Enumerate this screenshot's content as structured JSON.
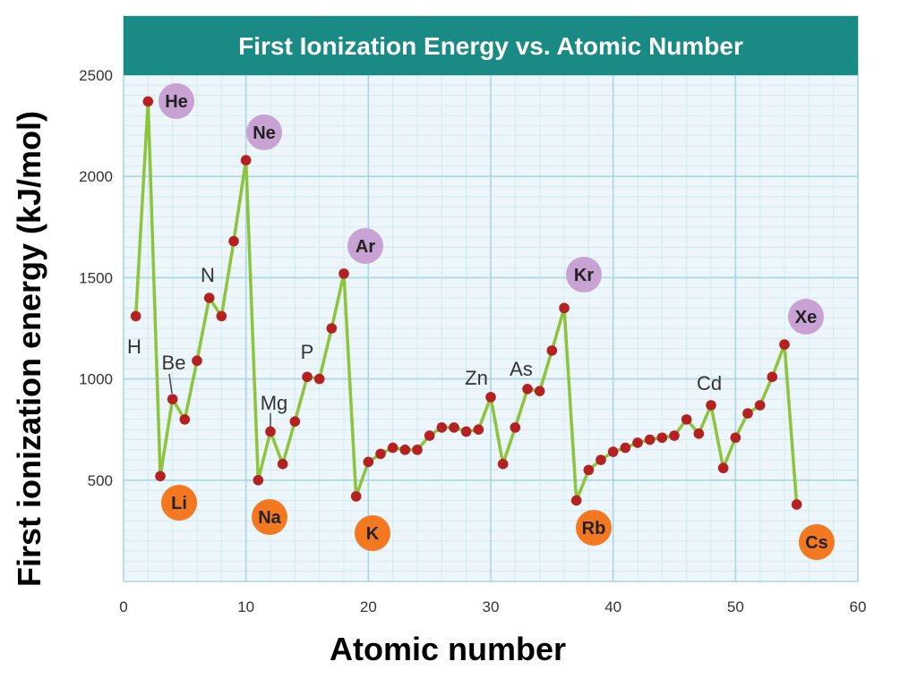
{
  "chart_data": {
    "type": "line",
    "title": "First Ionization Energy vs. Atomic Number",
    "xlabel": "Atomic number",
    "ylabel": "First ionization energy (kJ/mol)",
    "xlim": [
      0,
      60
    ],
    "ylim": [
      0,
      2500
    ],
    "xticks": [
      "0",
      "10",
      "20",
      "30",
      "40",
      "50",
      "60"
    ],
    "yticks": [
      "500",
      "1000",
      "1500",
      "2000",
      "2500"
    ],
    "grid": true,
    "x": [
      1,
      2,
      3,
      4,
      5,
      6,
      7,
      8,
      9,
      10,
      11,
      12,
      13,
      14,
      15,
      16,
      17,
      18,
      19,
      20,
      21,
      22,
      23,
      24,
      25,
      26,
      27,
      28,
      29,
      30,
      31,
      32,
      33,
      34,
      35,
      36,
      37,
      38,
      39,
      40,
      41,
      42,
      43,
      44,
      45,
      46,
      47,
      48,
      49,
      50,
      51,
      52,
      53,
      54,
      55
    ],
    "y": [
      1310,
      2370,
      520,
      900,
      800,
      1090,
      1400,
      1310,
      1680,
      2080,
      500,
      740,
      580,
      790,
      1010,
      1000,
      1250,
      1520,
      420,
      590,
      630,
      660,
      650,
      650,
      720,
      760,
      760,
      740,
      750,
      910,
      580,
      760,
      950,
      940,
      1140,
      1350,
      400,
      550,
      600,
      640,
      660,
      685,
      700,
      710,
      720,
      800,
      730,
      870,
      560,
      710,
      830,
      870,
      1010,
      1170,
      380
    ],
    "element_labels": [
      {
        "symbol": "He",
        "style": "noble"
      },
      {
        "symbol": "Ne",
        "style": "noble"
      },
      {
        "symbol": "Ar",
        "style": "noble"
      },
      {
        "symbol": "Kr",
        "style": "noble"
      },
      {
        "symbol": "Xe",
        "style": "noble"
      },
      {
        "symbol": "Li",
        "style": "alkali"
      },
      {
        "symbol": "Na",
        "style": "alkali"
      },
      {
        "symbol": "K",
        "style": "alkali"
      },
      {
        "symbol": "Rb",
        "style": "alkali"
      },
      {
        "symbol": "Cs",
        "style": "alkali"
      },
      {
        "symbol": "H",
        "style": "plain"
      },
      {
        "symbol": "Be",
        "style": "plain"
      },
      {
        "symbol": "N",
        "style": "plain"
      },
      {
        "symbol": "Mg",
        "style": "plain"
      },
      {
        "symbol": "P",
        "style": "plain"
      },
      {
        "symbol": "Zn",
        "style": "plain"
      },
      {
        "symbol": "As",
        "style": "plain"
      },
      {
        "symbol": "Cd",
        "style": "plain"
      }
    ],
    "colors": {
      "title_bar": "#1a8a85",
      "title_text": "#ffffff",
      "plot_bg": "#edf6fa",
      "grid_major": "#a9d6e6",
      "grid_minor": "#d3eaf2",
      "line": "#8cc43c",
      "point": "#b52121",
      "noble_badge": "#c8a2d2",
      "alkali_badge": "#f3781f",
      "badge_text": "#222222"
    }
  }
}
